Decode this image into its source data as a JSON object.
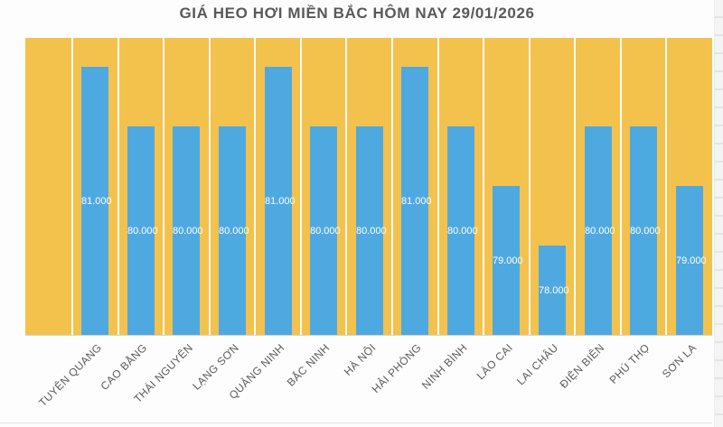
{
  "chart": {
    "plot_bg_color": "#F3C24D",
    "bar_color": "#4FA9E1",
    "gridline_color": "#FCFCFC",
    "title_color": "#595959",
    "axis_label_color": "#595959",
    "value_label_color": "#FFFFFF"
  },
  "chart_data": {
    "type": "bar",
    "title": "GIÁ HEO HƠI MIỀN BẮC HÔM NAY 29/01/2026",
    "categories": [
      "TUYÊN QUANG",
      "CAO BẰNG",
      "THÁI NGUYÊN",
      "LẠNG SƠN",
      "QUẢNG NINH",
      "BẮC NINH",
      "HÀ NỘI",
      "HẢI PHÒNG",
      "NINH BÌNH",
      "LÀO CAI",
      "LAI CHÂU",
      "ĐIỆN BIÊN",
      "PHÚ THỌ",
      "SƠN LA"
    ],
    "values": [
      81000,
      80000,
      80000,
      80000,
      81000,
      80000,
      80000,
      81000,
      80000,
      79000,
      78000,
      80000,
      80000,
      79000
    ],
    "value_labels": [
      "81.000",
      "80.000",
      "80.000",
      "80.000",
      "81.000",
      "80.000",
      "80.000",
      "81.000",
      "80.000",
      "79.000",
      "78.000",
      "80.000",
      "80.000",
      "79.000"
    ],
    "xlabel": "",
    "ylabel": "",
    "ylim": [
      76500,
      81500
    ],
    "grid": "vertical-white-gridlines",
    "legend": "none",
    "value_label_position": "center-inside-bar"
  }
}
